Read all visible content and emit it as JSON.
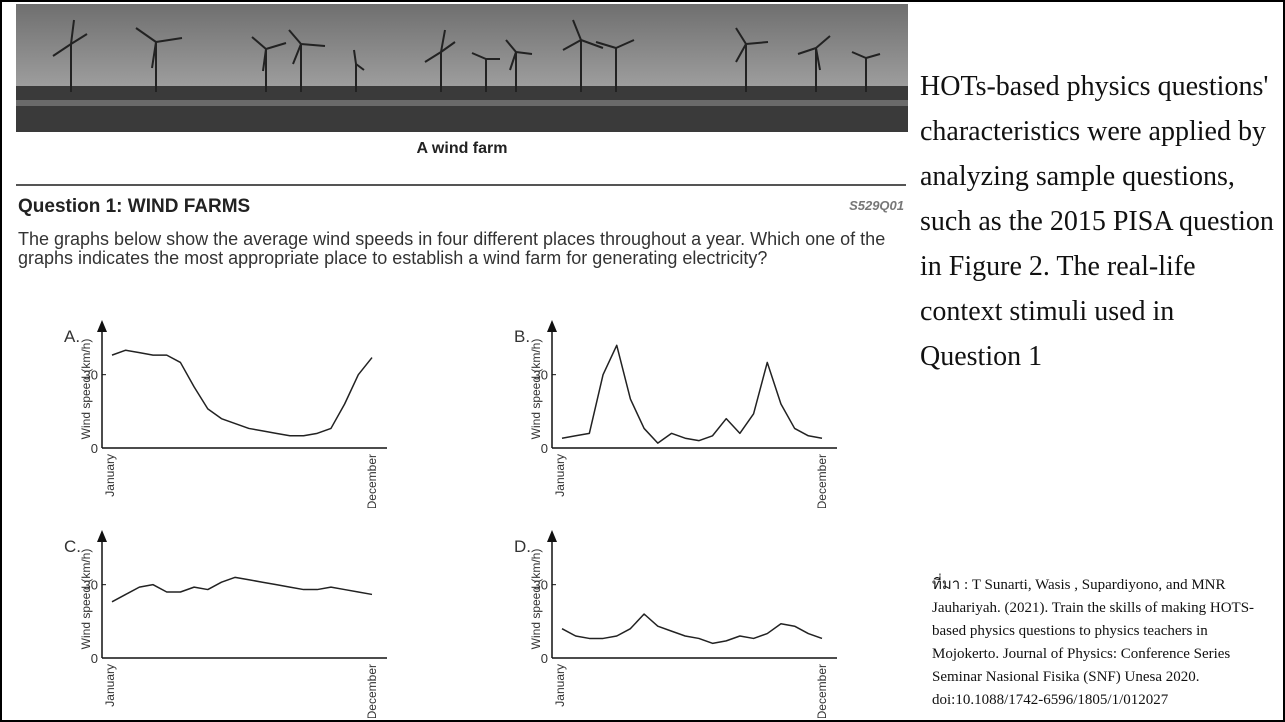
{
  "figure": {
    "caption": "A wind farm",
    "question": {
      "title": "Question 1: WIND FARMS",
      "code": "S529Q01",
      "text": "The graphs below show the average wind speeds in four different places throughout a year. Which one of the graphs indicates the most appropriate place to establish a wind farm for generating electricity?"
    },
    "graphs": [
      {
        "label": "A.",
        "ylabel": "Wind speed (km/h)",
        "ylim": [
          0,
          45
        ],
        "yticks": [
          0,
          30
        ],
        "x_labels": [
          "January",
          "December"
        ],
        "values": [
          38,
          40,
          39,
          38,
          38,
          35,
          25,
          16,
          12,
          10,
          8,
          7,
          6,
          5,
          5,
          6,
          8,
          18,
          30,
          37
        ]
      },
      {
        "label": "B.",
        "ylabel": "Wind speed (km/h)",
        "ylim": [
          0,
          45
        ],
        "yticks": [
          0,
          30
        ],
        "x_labels": [
          "January",
          "December"
        ],
        "values": [
          4,
          5,
          6,
          30,
          42,
          20,
          8,
          2,
          6,
          4,
          3,
          5,
          12,
          6,
          14,
          35,
          18,
          8,
          5,
          4
        ]
      },
      {
        "label": "C.",
        "ylabel": "Wind speed (km/h)",
        "ylim": [
          0,
          45
        ],
        "yticks": [
          0,
          30
        ],
        "x_labels": [
          "January",
          "December"
        ],
        "values": [
          23,
          26,
          29,
          30,
          27,
          27,
          29,
          28,
          31,
          33,
          32,
          31,
          30,
          29,
          28,
          28,
          29,
          28,
          27,
          26
        ]
      },
      {
        "label": "D.",
        "ylabel": "Wind speed (km/h)",
        "ylim": [
          0,
          45
        ],
        "yticks": [
          0,
          30
        ],
        "x_labels": [
          "January",
          "December"
        ],
        "values": [
          12,
          9,
          8,
          8,
          9,
          12,
          18,
          13,
          11,
          9,
          8,
          6,
          7,
          9,
          8,
          10,
          14,
          13,
          10,
          8
        ]
      }
    ]
  },
  "description": "HOTs-based physics questions' characteristics were applied by analyzing sample questions, such as the 2015 PISA question in Figure 2. The real-life context stimuli used in Question 1",
  "source": "ที่มา : T Sunarti, Wasis , Supardiyono, and MNR Jauhariyah. (2021). Train the skills of making HOTS-based physics questions to physics teachers in Mojokerto. Journal of Physics: Conference Series Seminar Nasional Fisika (SNF) Unesa 2020. doi:10.1088/1742-6596/1805/1/012027"
}
